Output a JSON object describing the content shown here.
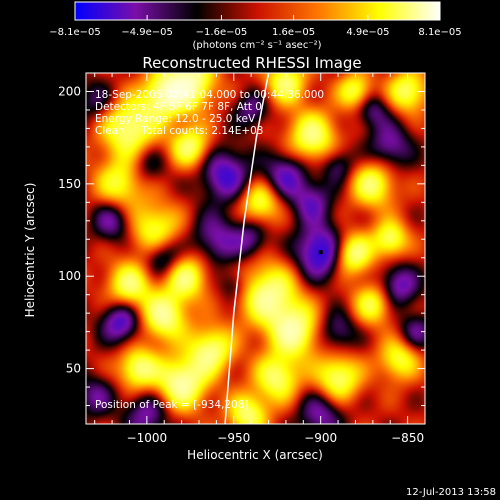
{
  "chart_data": {
    "type": "heatmap",
    "title": "Reconstructed RHESSI Image",
    "xlabel": "Heliocentric X (arcsec)",
    "ylabel": "Heliocentric Y (arcsec)",
    "xlim": [
      -1035,
      -840
    ],
    "ylim": [
      20,
      210
    ],
    "x_ticks": [
      -1000,
      -950,
      -900,
      -850
    ],
    "x_tick_labels": [
      "−1000",
      "−950",
      "−900",
      "−850"
    ],
    "y_ticks": [
      50,
      100,
      150,
      200
    ],
    "y_tick_labels": [
      "50",
      "100",
      "150",
      "200"
    ],
    "colorbar": {
      "range": [
        -8.1e-05,
        8.1e-05
      ],
      "ticks": [
        -8.1e-05,
        -4.9e-05,
        -1.6e-05,
        1.6e-05,
        4.9e-05,
        8.1e-05
      ],
      "tick_labels": [
        "−8.1e−05",
        "−4.9e−05",
        "−1.6e−05",
        "1.6e−05",
        "4.9e−05",
        "8.1e−05"
      ],
      "units": "(photons cm⁻² s⁻¹ asec⁻²)",
      "colors": [
        "#0000ff",
        "#7a0fa8",
        "#000000",
        "#cc1100",
        "#ff7700",
        "#ffff00",
        "#ffffff"
      ]
    },
    "annotations": [
      "18-Sep-2005 00:41:04.000 to 00:44:36.000",
      "Detectors: 4F 5F 6F 7F 8F, Att 0",
      "Energy Range: 12.0 - 25.0 keV",
      "Clean     Total counts: 2.14E+03"
    ],
    "peak_label": "Position of Peak = [-934,208]",
    "peak_position": [
      -934,
      208
    ],
    "marker_position": [
      -900,
      113
    ],
    "limb_curve": [
      [
        -955,
        20
      ],
      [
        -950,
        80
      ],
      [
        -944,
        130
      ],
      [
        -937,
        175
      ],
      [
        -930,
        210
      ]
    ],
    "sources": [
      {
        "x": -1010,
        "y": 180,
        "v": 0.9,
        "s": 11
      },
      {
        "x": -990,
        "y": 198,
        "v": 0.85,
        "s": 9
      },
      {
        "x": -975,
        "y": 205,
        "v": 0.95,
        "s": 10
      },
      {
        "x": -1015,
        "y": 150,
        "v": 0.7,
        "s": 10
      },
      {
        "x": -975,
        "y": 170,
        "v": 0.8,
        "s": 8
      },
      {
        "x": -995,
        "y": 125,
        "v": 0.75,
        "s": 10
      },
      {
        "x": -1010,
        "y": 95,
        "v": 0.8,
        "s": 9
      },
      {
        "x": -978,
        "y": 100,
        "v": 0.85,
        "s": 9
      },
      {
        "x": -990,
        "y": 78,
        "v": 0.9,
        "s": 9
      },
      {
        "x": -963,
        "y": 60,
        "v": 0.85,
        "s": 9
      },
      {
        "x": -980,
        "y": 42,
        "v": 1.0,
        "s": 10
      },
      {
        "x": -1005,
        "y": 50,
        "v": 0.85,
        "s": 8
      },
      {
        "x": -942,
        "y": 25,
        "v": 0.8,
        "s": 8
      },
      {
        "x": -935,
        "y": 140,
        "v": 0.75,
        "s": 8
      },
      {
        "x": -930,
        "y": 90,
        "v": 0.9,
        "s": 12
      },
      {
        "x": -915,
        "y": 70,
        "v": 0.9,
        "s": 10
      },
      {
        "x": -925,
        "y": 45,
        "v": 0.8,
        "s": 9
      },
      {
        "x": -890,
        "y": 45,
        "v": 0.85,
        "s": 9
      },
      {
        "x": -905,
        "y": 175,
        "v": 0.85,
        "s": 10
      },
      {
        "x": -870,
        "y": 150,
        "v": 0.8,
        "s": 9
      },
      {
        "x": -882,
        "y": 112,
        "v": 0.95,
        "s": 8
      },
      {
        "x": -860,
        "y": 120,
        "v": 0.8,
        "s": 7
      },
      {
        "x": -870,
        "y": 85,
        "v": 0.7,
        "s": 8
      },
      {
        "x": -855,
        "y": 55,
        "v": 0.7,
        "s": 8
      },
      {
        "x": -850,
        "y": 200,
        "v": 0.8,
        "s": 8
      },
      {
        "x": -920,
        "y": 205,
        "v": 0.8,
        "s": 8
      },
      {
        "x": -880,
        "y": 200,
        "v": 0.75,
        "s": 7
      },
      {
        "x": -1000,
        "y": 25,
        "v": -0.6,
        "s": 9
      },
      {
        "x": -1015,
        "y": 75,
        "v": -0.8,
        "s": 8
      },
      {
        "x": -990,
        "y": 110,
        "v": -0.7,
        "s": 8
      },
      {
        "x": -1020,
        "y": 130,
        "v": -0.6,
        "s": 8
      },
      {
        "x": -1000,
        "y": 160,
        "v": -0.4,
        "s": 8
      },
      {
        "x": -955,
        "y": 155,
        "v": -0.8,
        "s": 10
      },
      {
        "x": -960,
        "y": 120,
        "v": -0.6,
        "s": 10
      },
      {
        "x": -940,
        "y": 120,
        "v": -0.5,
        "s": 7
      },
      {
        "x": -900,
        "y": 113,
        "v": -1.0,
        "s": 10
      },
      {
        "x": -905,
        "y": 140,
        "v": -0.6,
        "s": 8
      },
      {
        "x": -920,
        "y": 155,
        "v": -0.7,
        "s": 9
      },
      {
        "x": -890,
        "y": 160,
        "v": -0.5,
        "s": 7
      },
      {
        "x": -860,
        "y": 170,
        "v": -0.6,
        "s": 9
      },
      {
        "x": -870,
        "y": 190,
        "v": -0.5,
        "s": 7
      },
      {
        "x": -900,
        "y": 25,
        "v": -0.6,
        "s": 9
      },
      {
        "x": -890,
        "y": 70,
        "v": -0.5,
        "s": 8
      },
      {
        "x": -855,
        "y": 95,
        "v": -0.7,
        "s": 8
      },
      {
        "x": -845,
        "y": 70,
        "v": -0.5,
        "s": 7
      },
      {
        "x": -940,
        "y": 190,
        "v": -0.5,
        "s": 7
      },
      {
        "x": -1030,
        "y": 195,
        "v": -0.4,
        "s": 8
      },
      {
        "x": -1030,
        "y": 35,
        "v": -0.5,
        "s": 8
      },
      {
        "x": -950,
        "y": 95,
        "v": -0.4,
        "s": 6
      }
    ]
  },
  "timestamp": "12-Jul-2013 13:58"
}
